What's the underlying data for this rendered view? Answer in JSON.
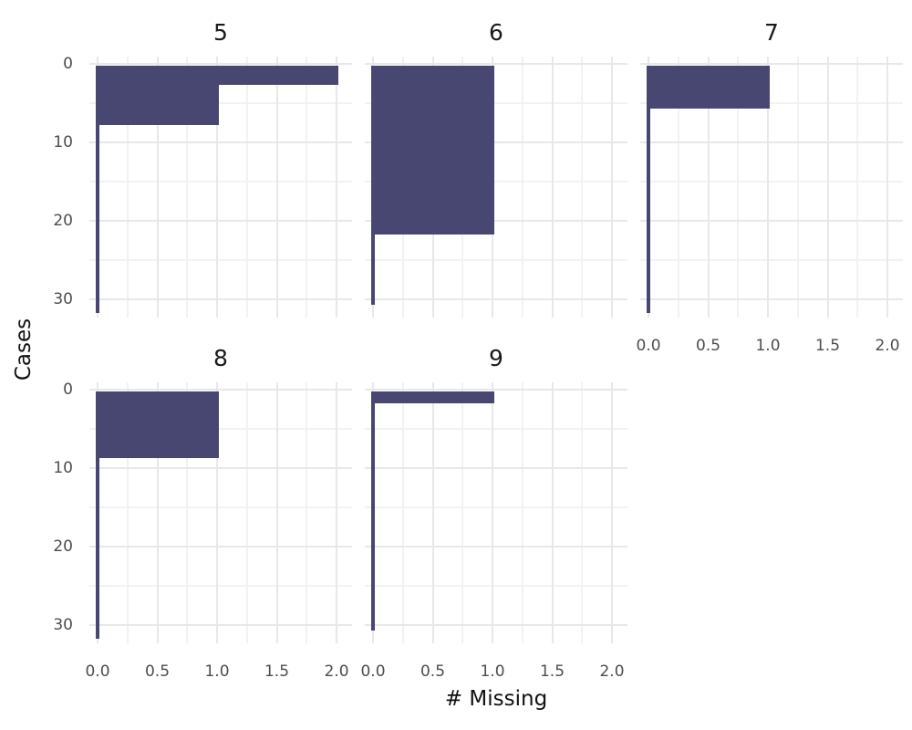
{
  "chart_data": {
    "type": "bar",
    "orientation": "horizontal",
    "source_style": "ggplot-facet-missing-data-plot",
    "title": "",
    "xlabel": "# Missing",
    "ylabel": "Cases",
    "legend": "none",
    "grid": "on",
    "x_ticks": [
      {
        "label": "0.0",
        "value": 0
      },
      {
        "label": "0.5",
        "value": 0.5
      },
      {
        "label": "1.0",
        "value": 1
      },
      {
        "label": "1.5",
        "value": 1.5
      },
      {
        "label": "2.0",
        "value": 2
      }
    ],
    "x_minor_values": [
      0.25,
      0.75,
      1.25,
      1.75
    ],
    "xlim": [
      -0.07,
      2.13
    ],
    "y_ticks": [
      {
        "label": "0",
        "value": 0
      },
      {
        "label": "10",
        "value": 10
      },
      {
        "label": "20",
        "value": 20
      },
      {
        "label": "30",
        "value": 30
      }
    ],
    "y_minor_values": [
      5,
      15,
      25
    ],
    "ylim_cases": [
      0,
      32.3
    ],
    "bar_color": "#484771",
    "grid_major_color": "#e8e8e8",
    "grid_minor_color": "#f2f2f2",
    "tick_text_color": "#4d4d4d",
    "facets": [
      {
        "label": "5",
        "row": 0,
        "col": 0,
        "n_cases": 31,
        "show_x_axis": false,
        "runs": [
          {
            "n_missing": 2,
            "cases": 2
          },
          {
            "n_missing": 1,
            "cases": 5
          },
          {
            "n_missing": 0,
            "cases": 24
          }
        ]
      },
      {
        "label": "6",
        "row": 0,
        "col": 1,
        "n_cases": 30,
        "show_x_axis": false,
        "runs": [
          {
            "n_missing": 1,
            "cases": 21
          },
          {
            "n_missing": 0,
            "cases": 9
          }
        ]
      },
      {
        "label": "7",
        "row": 0,
        "col": 2,
        "n_cases": 31,
        "show_x_axis": true,
        "runs": [
          {
            "n_missing": 1,
            "cases": 5
          },
          {
            "n_missing": 0,
            "cases": 26
          }
        ]
      },
      {
        "label": "8",
        "row": 1,
        "col": 0,
        "n_cases": 31,
        "show_x_axis": true,
        "runs": [
          {
            "n_missing": 1,
            "cases": 8
          },
          {
            "n_missing": 0,
            "cases": 23
          }
        ]
      },
      {
        "label": "9",
        "row": 1,
        "col": 1,
        "n_cases": 30,
        "show_x_axis": true,
        "runs": [
          {
            "n_missing": 1,
            "cases": 1
          },
          {
            "n_missing": 0,
            "cases": 29
          }
        ]
      }
    ]
  }
}
